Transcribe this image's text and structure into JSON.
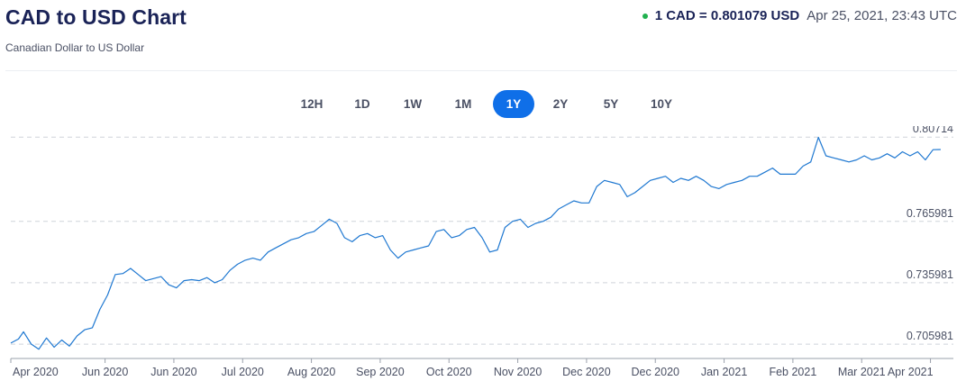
{
  "header": {
    "title": "CAD to USD Chart",
    "subtitle": "Canadian Dollar to US Dollar",
    "rate": "1 CAD = 0.801079 USD",
    "timestamp": "Apr 25, 2021, 23:43 UTC"
  },
  "ranges": [
    {
      "label": "12H",
      "active": false
    },
    {
      "label": "1D",
      "active": false
    },
    {
      "label": "1W",
      "active": false
    },
    {
      "label": "1M",
      "active": false
    },
    {
      "label": "1Y",
      "active": true
    },
    {
      "label": "2Y",
      "active": false
    },
    {
      "label": "5Y",
      "active": false
    },
    {
      "label": "10Y",
      "active": false
    }
  ],
  "colors": {
    "line": "#1f78d1",
    "accent": "#0f6fe8",
    "live": "#21b14f",
    "grid": "#cfd3da"
  },
  "chart_data": {
    "type": "line",
    "series": [
      {
        "x": [
          "2020-04-25",
          "2020-04-28",
          "2020-04-30",
          "2020-05-03",
          "2020-05-06",
          "2020-05-09",
          "2020-05-12",
          "2020-05-15",
          "2020-05-18",
          "2020-05-21",
          "2020-05-24",
          "2020-05-27",
          "2020-05-30",
          "2020-06-02",
          "2020-06-05",
          "2020-06-08",
          "2020-06-11",
          "2020-06-14",
          "2020-06-17",
          "2020-06-20",
          "2020-06-23",
          "2020-06-26",
          "2020-06-29",
          "2020-07-02",
          "2020-07-05",
          "2020-07-08",
          "2020-07-11",
          "2020-07-14",
          "2020-07-17",
          "2020-07-20",
          "2020-07-23",
          "2020-07-26",
          "2020-07-29",
          "2020-08-01",
          "2020-08-04",
          "2020-08-07",
          "2020-08-10",
          "2020-08-13",
          "2020-08-16",
          "2020-08-19",
          "2020-08-22",
          "2020-08-25",
          "2020-08-28",
          "2020-08-31",
          "2020-09-03",
          "2020-09-06",
          "2020-09-09",
          "2020-09-12",
          "2020-09-15",
          "2020-09-18",
          "2020-09-21",
          "2020-09-24",
          "2020-09-27",
          "2020-09-30",
          "2020-10-03",
          "2020-10-06",
          "2020-10-09",
          "2020-10-12",
          "2020-10-15",
          "2020-10-18",
          "2020-10-21",
          "2020-10-24",
          "2020-10-27",
          "2020-10-30",
          "2020-11-02",
          "2020-11-05",
          "2020-11-08",
          "2020-11-11",
          "2020-11-14",
          "2020-11-17",
          "2020-11-20",
          "2020-11-23",
          "2020-11-26",
          "2020-11-29",
          "2020-12-02",
          "2020-12-05",
          "2020-12-08",
          "2020-12-11",
          "2020-12-14",
          "2020-12-17",
          "2020-12-20",
          "2020-12-23",
          "2020-12-26",
          "2020-12-29",
          "2021-01-01",
          "2021-01-04",
          "2021-01-07",
          "2021-01-10",
          "2021-01-13",
          "2021-01-16",
          "2021-01-19",
          "2021-01-22",
          "2021-01-25",
          "2021-01-28",
          "2021-01-31",
          "2021-02-03",
          "2021-02-06",
          "2021-02-09",
          "2021-02-12",
          "2021-02-15",
          "2021-02-18",
          "2021-02-21",
          "2021-02-24",
          "2021-02-27",
          "2021-03-02",
          "2021-03-05",
          "2021-03-08",
          "2021-03-11",
          "2021-03-14",
          "2021-03-17",
          "2021-03-20",
          "2021-03-23",
          "2021-03-26",
          "2021-03-29",
          "2021-04-01",
          "2021-04-04",
          "2021-04-07",
          "2021-04-10",
          "2021-04-13",
          "2021-04-16",
          "2021-04-19",
          "2021-04-22",
          "2021-04-25"
        ],
        "y": [
          0.7065,
          0.7085,
          0.712,
          0.706,
          0.7035,
          0.709,
          0.7045,
          0.708,
          0.705,
          0.71,
          0.713,
          0.714,
          0.723,
          0.73,
          0.74,
          0.7405,
          0.743,
          0.74,
          0.737,
          0.738,
          0.739,
          0.735,
          0.7335,
          0.737,
          0.7375,
          0.737,
          0.7385,
          0.736,
          0.7375,
          0.742,
          0.745,
          0.747,
          0.748,
          0.747,
          0.751,
          0.753,
          0.755,
          0.757,
          0.758,
          0.76,
          0.761,
          0.764,
          0.767,
          0.765,
          0.758,
          0.756,
          0.759,
          0.76,
          0.758,
          0.759,
          0.752,
          0.748,
          0.751,
          0.752,
          0.753,
          0.754,
          0.761,
          0.762,
          0.758,
          0.759,
          0.762,
          0.763,
          0.758,
          0.751,
          0.752,
          0.763,
          0.766,
          0.767,
          0.763,
          0.765,
          0.766,
          0.768,
          0.772,
          0.774,
          0.776,
          0.775,
          0.775,
          0.783,
          0.786,
          0.785,
          0.784,
          0.778,
          0.78,
          0.783,
          0.786,
          0.787,
          0.788,
          0.785,
          0.787,
          0.786,
          0.788,
          0.786,
          0.783,
          0.782,
          0.784,
          0.785,
          0.786,
          0.788,
          0.788,
          0.79,
          0.792,
          0.789,
          0.789,
          0.789,
          0.793,
          0.795,
          0.807,
          0.798,
          0.797,
          0.796,
          0.795,
          0.796,
          0.798,
          0.796,
          0.797,
          0.799,
          0.797,
          0.8,
          0.798,
          0.8,
          0.796,
          0.801,
          0.8011
        ]
      }
    ],
    "yticks": [
      "0.80714",
      "0.765981",
      "0.735981",
      "0.705981"
    ],
    "xticks": [
      {
        "label": "Apr 2020",
        "date": "2020-04-25"
      },
      {
        "label": "Jun 2020",
        "date": "2020-06-01"
      },
      {
        "label": "Jun 2020",
        "date": "2020-06-28"
      },
      {
        "label": "Jul 2020",
        "date": "2020-07-25"
      },
      {
        "label": "Aug 2020",
        "date": "2020-08-21"
      },
      {
        "label": "Sep 2020",
        "date": "2020-09-17"
      },
      {
        "label": "Oct 2020",
        "date": "2020-10-14"
      },
      {
        "label": "Nov 2020",
        "date": "2020-11-10"
      },
      {
        "label": "Dec 2020",
        "date": "2020-12-07"
      },
      {
        "label": "Dec 2020",
        "date": "2021-01-03"
      },
      {
        "label": "Jan 2021",
        "date": "2021-01-30"
      },
      {
        "label": "Feb 2021",
        "date": "2021-02-26"
      },
      {
        "label": "Mar 2021",
        "date": "2021-03-25"
      },
      {
        "label": "Apr 2021",
        "date": "2021-04-21"
      }
    ],
    "ylim": [
      0.7025,
      0.809
    ],
    "xlim": [
      "2020-04-25",
      "2021-04-30"
    ],
    "grid": true
  }
}
